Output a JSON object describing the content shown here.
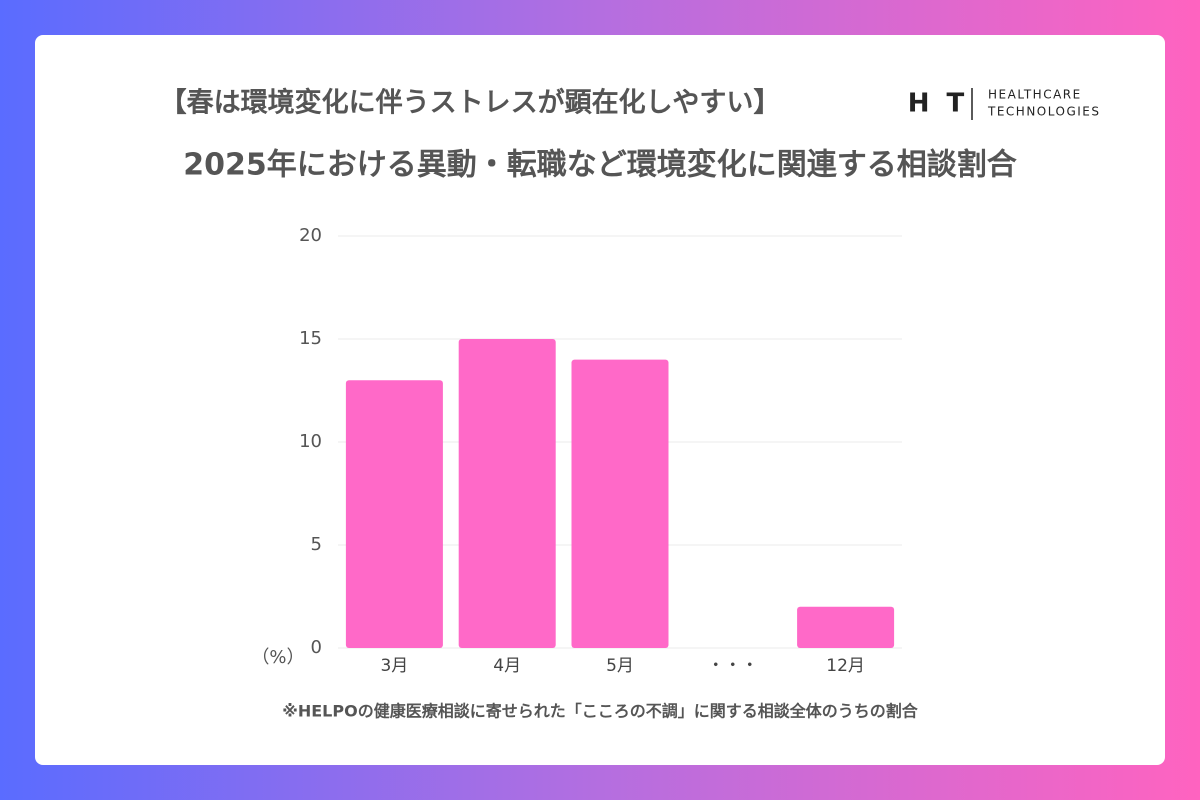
{
  "chart_data": {
    "type": "bar",
    "title": "【春は環境変化に伴うストレスが顕在化しやすい】",
    "subtitle": "2025年における異動・転職など環境変化に関連する相談割合",
    "y_label": "（%）",
    "note": "※HELPOの健康医療相談に寄せられた「こころの不調」に関する相談全体のうちの割合",
    "categories": [
      "3月",
      "4月",
      "5月",
      "・・・",
      "12月"
    ],
    "values": [
      13,
      15,
      14,
      null,
      2
    ],
    "color": "#ff69c8",
    "ylim": [
      0,
      20
    ],
    "yticks": [
      0,
      5,
      10,
      15,
      20
    ],
    "grid": true
  },
  "logo": {
    "mark": "H T",
    "lines": [
      "HEALTHCARE",
      "TECHNOLOGIES"
    ]
  }
}
